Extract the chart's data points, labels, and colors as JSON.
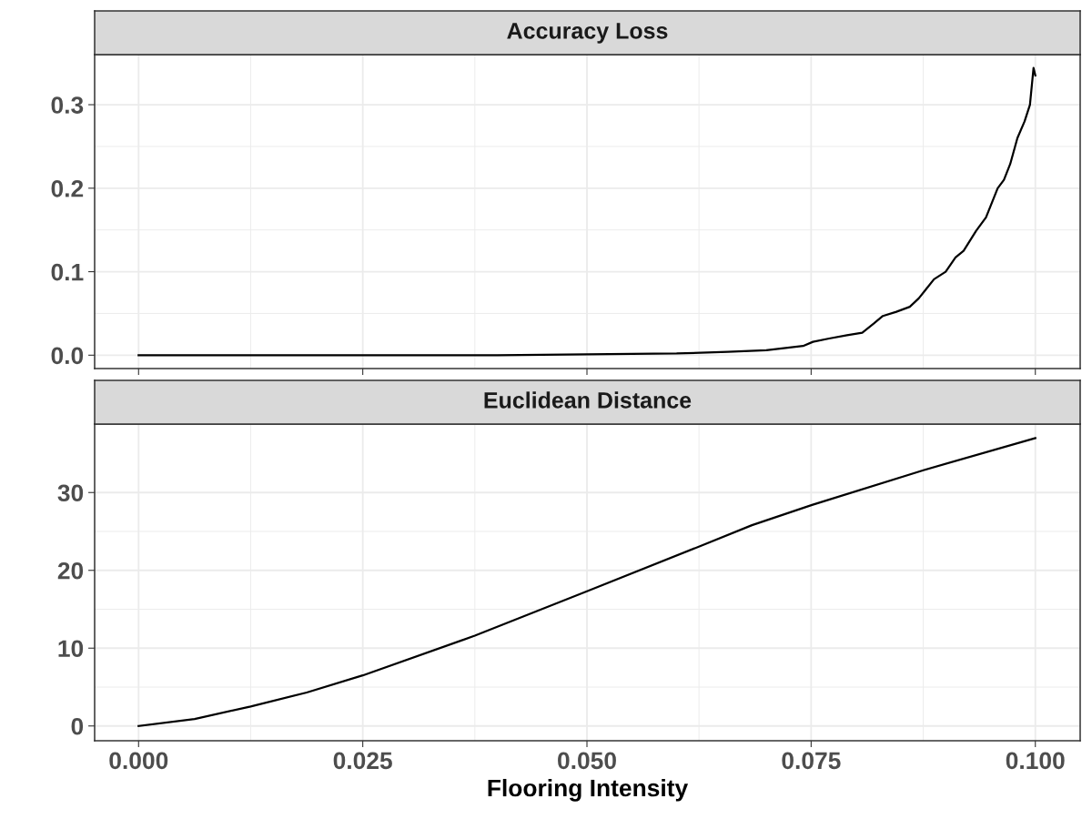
{
  "chart_data": [
    {
      "type": "line",
      "title": "Accuracy Loss",
      "tick_labels": "y",
      "grid": true,
      "xlim": [
        -0.0049,
        0.105
      ],
      "xticks": [
        {
          "value": 0,
          "label": null
        },
        {
          "value": 0.025,
          "label": null
        },
        {
          "value": 0.05,
          "label": null
        },
        {
          "value": 0.075,
          "label": null
        },
        {
          "value": 0.1,
          "label": null
        }
      ],
      "ylim": [
        -0.016,
        0.36
      ],
      "yticks": [
        {
          "value": 0,
          "label": "0.0"
        },
        {
          "value": 0.1,
          "label": "0.1"
        },
        {
          "value": 0.2,
          "label": "0.2"
        },
        {
          "value": 0.3,
          "label": "0.3"
        }
      ],
      "series": [
        {
          "color": "#000000",
          "x": [
            0,
            0.01,
            0.02,
            0.03,
            0.04,
            0.05,
            0.06,
            0.0657,
            0.07,
            0.0741,
            0.0752,
            0.077,
            0.079,
            0.0807,
            0.082,
            0.083,
            0.0845,
            0.086,
            0.087,
            0.0887,
            0.09,
            0.0911,
            0.092,
            0.0934,
            0.0945,
            0.0958,
            0.0965,
            0.0972,
            0.098,
            0.0988,
            0.0994,
            0.0998,
            0.1
          ],
          "values": [
            0,
            0,
            0,
            0,
            0,
            0.001,
            0.002,
            0.004,
            0.006,
            0.011,
            0.016,
            0.02,
            0.024,
            0.027,
            0.038,
            0.047,
            0.052,
            0.058,
            0.068,
            0.091,
            0.1,
            0.117,
            0.125,
            0.149,
            0.165,
            0.2,
            0.21,
            0.229,
            0.26,
            0.28,
            0.3,
            0.344,
            0.335
          ]
        }
      ]
    },
    {
      "type": "line",
      "title": "Euclidean Distance",
      "xlabel": "Flooring Intensity",
      "grid": true,
      "xlim": [
        -0.0049,
        0.105
      ],
      "xticks": [
        {
          "value": 0,
          "label": "0.000"
        },
        {
          "value": 0.025,
          "label": "0.025"
        },
        {
          "value": 0.05,
          "label": "0.050"
        },
        {
          "value": 0.075,
          "label": "0.075"
        },
        {
          "value": 0.1,
          "label": "0.100"
        }
      ],
      "ylim": [
        -1.9,
        38.8
      ],
      "yticks": [
        0,
        10,
        20,
        30
      ],
      "series": [
        {
          "color": "#000000",
          "x": [
            0,
            0.00625,
            0.0125,
            0.01875,
            0.025,
            0.0375,
            0.05,
            0.0626,
            0.0684,
            0.0751,
            0.0876,
            0.1
          ],
          "values": [
            0,
            0.9,
            2.5,
            4.3,
            6.5,
            11.6,
            17.3,
            23.1,
            25.8,
            28.4,
            32.9,
            37.0
          ]
        }
      ]
    }
  ]
}
